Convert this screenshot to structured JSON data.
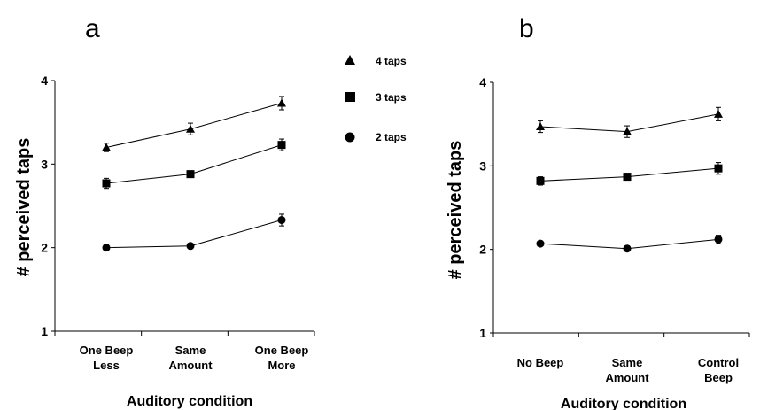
{
  "chart_data": [
    {
      "type": "line",
      "panel_label": "a",
      "xlabel": "Auditory condition",
      "ylabel": "# perceived taps",
      "ylim": [
        1,
        4
      ],
      "yticks": [
        1,
        2,
        3,
        4
      ],
      "grid": false,
      "categories": [
        [
          "One Beep",
          "Less"
        ],
        [
          "Same",
          "Amount"
        ],
        [
          "One Beep",
          "More"
        ]
      ],
      "series": [
        {
          "name": "4 taps",
          "marker": "triangle",
          "values": [
            3.2,
            3.42,
            3.73
          ],
          "errors": [
            0.05,
            0.07,
            0.08
          ]
        },
        {
          "name": "3 taps",
          "marker": "square",
          "values": [
            2.77,
            2.88,
            3.23
          ],
          "errors": [
            0.06,
            0.04,
            0.07
          ]
        },
        {
          "name": "2 taps",
          "marker": "circle",
          "values": [
            2.0,
            2.02,
            2.33
          ],
          "errors": [
            0.03,
            0.03,
            0.07
          ]
        }
      ]
    },
    {
      "type": "line",
      "panel_label": "b",
      "xlabel": "Auditory condition",
      "ylabel": "# perceived taps",
      "ylim": [
        1,
        4
      ],
      "yticks": [
        1,
        2,
        3,
        4
      ],
      "grid": false,
      "categories": [
        [
          "No Beep"
        ],
        [
          "Same",
          "Amount"
        ],
        [
          "Control",
          "Beep"
        ]
      ],
      "series": [
        {
          "name": "4 taps",
          "marker": "triangle",
          "values": [
            3.47,
            3.41,
            3.62
          ],
          "errors": [
            0.07,
            0.07,
            0.08
          ]
        },
        {
          "name": "3 taps",
          "marker": "square",
          "values": [
            2.82,
            2.87,
            2.97
          ],
          "errors": [
            0.05,
            0.04,
            0.07
          ]
        },
        {
          "name": "2 taps",
          "marker": "circle",
          "values": [
            2.07,
            2.01,
            2.12
          ],
          "errors": [
            0.03,
            0.03,
            0.05
          ]
        }
      ]
    }
  ],
  "legend": {
    "position": "between panels",
    "items": [
      {
        "label": "4 taps",
        "marker": "triangle"
      },
      {
        "label": "3 taps",
        "marker": "square"
      },
      {
        "label": "2 taps",
        "marker": "circle"
      }
    ]
  }
}
